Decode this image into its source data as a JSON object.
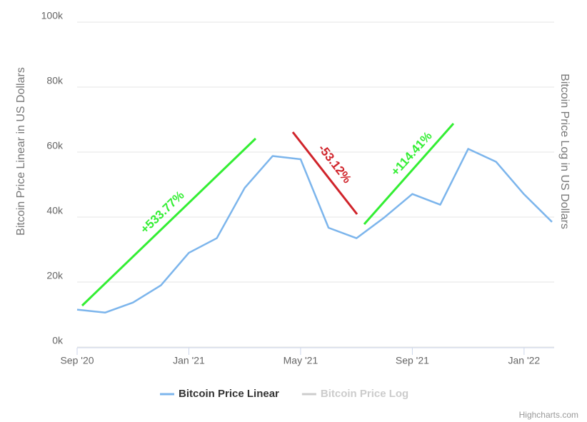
{
  "chart_data": {
    "type": "line",
    "y_axis_title": "Bitcoin Price Linear in US Dollars",
    "y2_axis_title": "Bitcoin Price Log in US Dollars",
    "x": [
      "2020-09",
      "2020-10",
      "2020-11",
      "2020-12",
      "2021-01",
      "2021-02",
      "2021-03",
      "2021-04",
      "2021-05",
      "2021-06",
      "2021-07",
      "2021-08",
      "2021-09",
      "2021-10",
      "2021-11",
      "2021-12",
      "2022-01",
      "2022-02"
    ],
    "series": [
      {
        "name": "Bitcoin Price Linear",
        "color": "#7cb5ec",
        "values": [
          11500,
          10600,
          13700,
          19000,
          29000,
          33500,
          49000,
          58800,
          57800,
          36700,
          33500,
          39900,
          47100,
          43800,
          61000,
          57000,
          47000,
          38500
        ]
      }
    ],
    "hidden_series": [
      {
        "name": "Bitcoin Price Log",
        "color": "#cccccc"
      }
    ],
    "xlim": [
      "2020-09",
      "2022-02"
    ],
    "xticks": [
      {
        "value": "2020-09",
        "label": "Sep '20"
      },
      {
        "value": "2021-01",
        "label": "Jan '21"
      },
      {
        "value": "2021-05",
        "label": "May '21"
      },
      {
        "value": "2021-09",
        "label": "Sep '21"
      },
      {
        "value": "2022-01",
        "label": "Jan '22"
      }
    ],
    "ylim": [
      0,
      100000
    ],
    "yticks": [
      {
        "value": 0,
        "label": "0k"
      },
      {
        "value": 20000,
        "label": "20k"
      },
      {
        "value": 40000,
        "label": "40k"
      },
      {
        "value": 60000,
        "label": "60k"
      },
      {
        "value": 80000,
        "label": "80k"
      },
      {
        "value": 100000,
        "label": "100k"
      }
    ],
    "grid": true,
    "annotations": [
      {
        "text": "+533.77%",
        "color": "#33ee33"
      },
      {
        "text": "-53.12%",
        "color": "#d0232a"
      },
      {
        "text": "+114.41%",
        "color": "#33ee33"
      }
    ],
    "credits": "Highcharts.com"
  }
}
